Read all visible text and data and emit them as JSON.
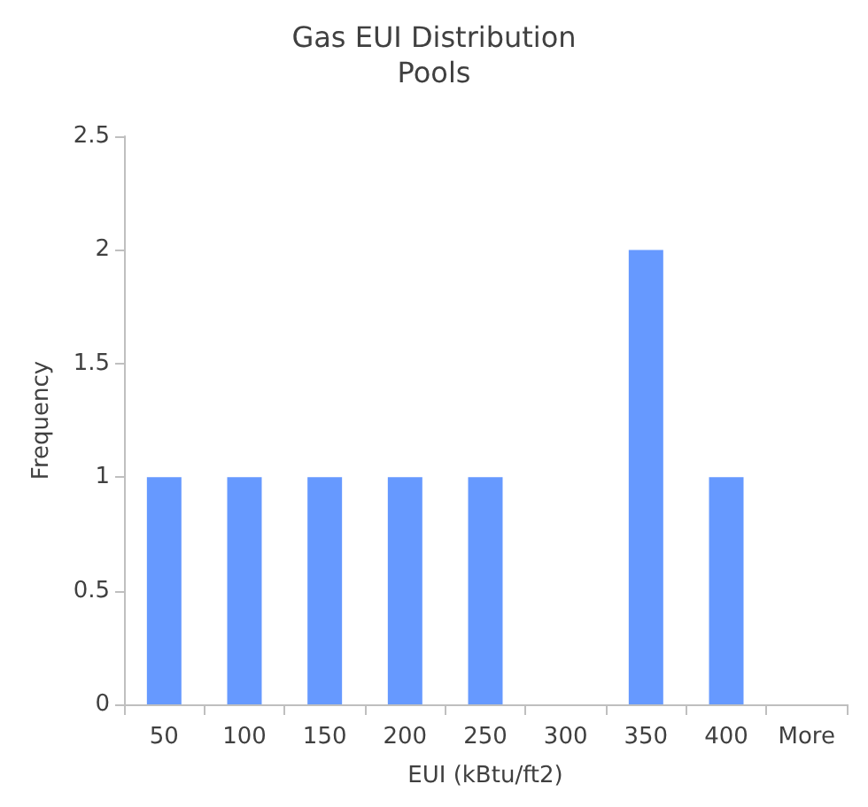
{
  "chart_data": {
    "type": "bar",
    "title": "Gas EUI Distribution",
    "subtitle": "Pools",
    "xlabel": "EUI (kBtu/ft2)",
    "ylabel": "Frequency",
    "categories": [
      "50",
      "100",
      "150",
      "200",
      "250",
      "300",
      "350",
      "400",
      "More"
    ],
    "series": [
      {
        "color": "#6699ff",
        "values": [
          1,
          1,
          1,
          1,
          1,
          0,
          2,
          1,
          0
        ]
      }
    ],
    "ylim": [
      0,
      2.5
    ],
    "yticks": [
      0,
      0.5,
      1,
      1.5,
      2,
      2.5
    ]
  }
}
